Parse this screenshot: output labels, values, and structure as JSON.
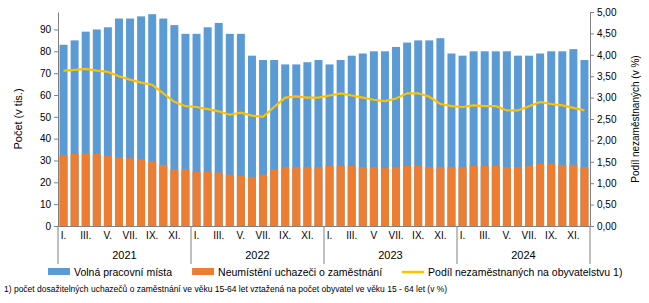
{
  "chart_data": {
    "type": "bar",
    "categories": [
      "I.",
      null,
      "III.",
      null,
      "V.",
      null,
      "VII.",
      null,
      "IX.",
      null,
      "XI.",
      null,
      "I.",
      null,
      "III.",
      null,
      "V.",
      null,
      "VII.",
      null,
      "IX.",
      null,
      "XI.",
      null,
      "I.",
      null,
      "III.",
      null,
      "V",
      null,
      "VII.",
      null,
      "IX.",
      null,
      "XI.",
      null,
      "I.",
      null,
      "III.",
      null,
      "V.",
      null,
      "VII.",
      null,
      "IX.",
      null,
      "XI.",
      null
    ],
    "years": [
      "2021",
      "2022",
      "2023",
      "2024"
    ],
    "y_label": "Počet (v tis.)",
    "y2_label": "Podíl nezaměstnaných (v %)",
    "footnote": "1) počet dosažitelných uchazečů o zaměstnání  ve věku 15-64 let vztažená na počet obyvatel ve věku 15 - 64 let (v %)",
    "ylim": [
      0,
      98
    ],
    "yticks": [
      0,
      10,
      20,
      30,
      40,
      50,
      60,
      70,
      80,
      90
    ],
    "y2lim": [
      0,
      5
    ],
    "y2ticks": [
      {
        "value": 0,
        "label": "0,00"
      },
      {
        "value": 0.5,
        "label": "0,50"
      },
      {
        "value": 1,
        "label": "1,00"
      },
      {
        "value": 1.5,
        "label": "1,50"
      },
      {
        "value": 2,
        "label": "2,00"
      },
      {
        "value": 2.5,
        "label": "2,50"
      },
      {
        "value": 3,
        "label": "3,00"
      },
      {
        "value": 3.5,
        "label": "3,50"
      },
      {
        "value": 4,
        "label": "4,00"
      },
      {
        "value": 4.5,
        "label": "4,50"
      },
      {
        "value": 5,
        "label": "5,00"
      }
    ],
    "grid": false,
    "legend": "bottom",
    "series": [
      {
        "name": "Volná pracovní místa",
        "color": "#5b9bd5",
        "type": "bar",
        "values": [
          83,
          85,
          89,
          90,
          91,
          95,
          95,
          96,
          97,
          95,
          92,
          88,
          88,
          91,
          93,
          88,
          88,
          78,
          76,
          76,
          74,
          74,
          75,
          76,
          74,
          76,
          78,
          79,
          80,
          80,
          82,
          84,
          85,
          85,
          86,
          79,
          78,
          80,
          80,
          80,
          80,
          78,
          78,
          79,
          80,
          80,
          81,
          76
        ]
      },
      {
        "name": "Neumístění uchazeči o zaměstnání",
        "color": "#ed7d31",
        "type": "bar",
        "values": [
          32.5,
          33,
          33,
          33,
          32,
          31.5,
          31,
          30.5,
          29.5,
          28,
          26,
          26,
          25,
          25,
          24.5,
          23.5,
          23,
          22.5,
          23.5,
          26,
          27,
          27,
          27,
          27,
          27.5,
          27.5,
          27.5,
          27,
          27,
          26.5,
          27,
          27.5,
          27.5,
          27,
          27,
          27,
          27,
          27.5,
          27.5,
          27.5,
          27,
          27,
          27.5,
          28.5,
          28.5,
          28,
          28,
          27
        ]
      },
      {
        "name": "Podíl nezaměstnaných na obyvatelstvu 1)",
        "color": "#ffc000",
        "type": "line",
        "axis": "y2",
        "values": [
          3.63,
          3.65,
          3.67,
          3.63,
          3.6,
          3.5,
          3.42,
          3.35,
          3.3,
          3.1,
          2.9,
          2.8,
          2.78,
          2.73,
          2.68,
          2.6,
          2.65,
          2.58,
          2.55,
          2.78,
          3.0,
          3.03,
          3.0,
          3.0,
          3.05,
          3.1,
          3.05,
          3.0,
          2.95,
          2.92,
          2.98,
          3.1,
          3.1,
          3.02,
          2.85,
          2.8,
          2.78,
          2.82,
          2.8,
          2.8,
          2.7,
          2.7,
          2.8,
          2.9,
          2.85,
          2.82,
          2.76,
          2.7
        ]
      }
    ]
  }
}
